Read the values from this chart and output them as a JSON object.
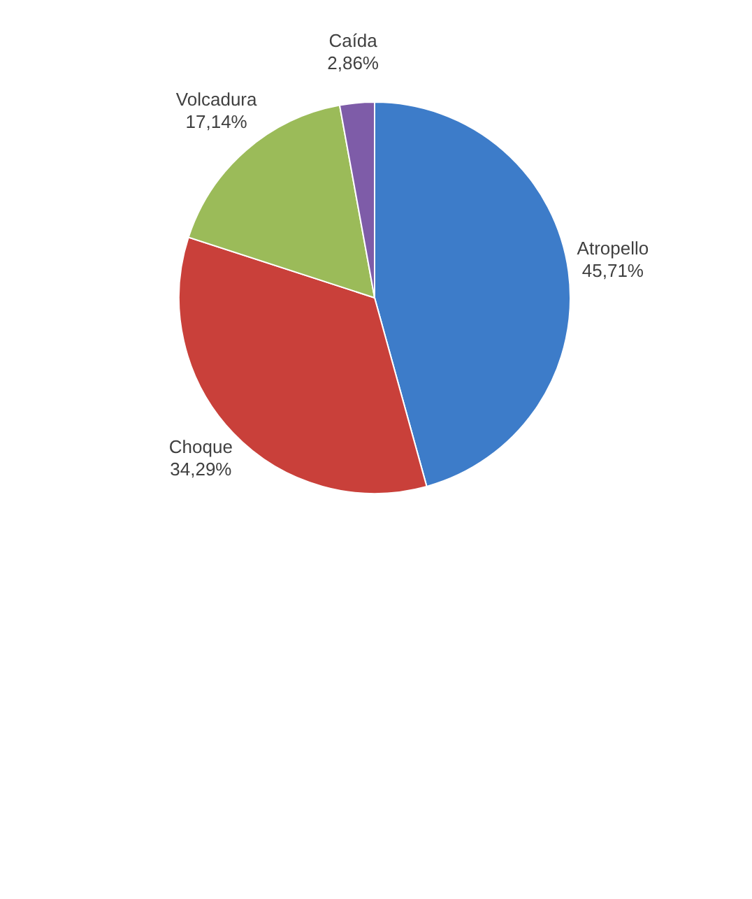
{
  "chart_data": {
    "type": "pie",
    "categories": [
      "Atropello",
      "Choque",
      "Volcadura",
      "Caída"
    ],
    "values": [
      45.71,
      34.29,
      17.14,
      2.86
    ],
    "colors": [
      "#3d7cc9",
      "#c9403a",
      "#9bbb59",
      "#7e5ca8"
    ],
    "value_labels": [
      "45,71%",
      "34,29%",
      "17,14%",
      "2,86%"
    ],
    "legend": false
  }
}
